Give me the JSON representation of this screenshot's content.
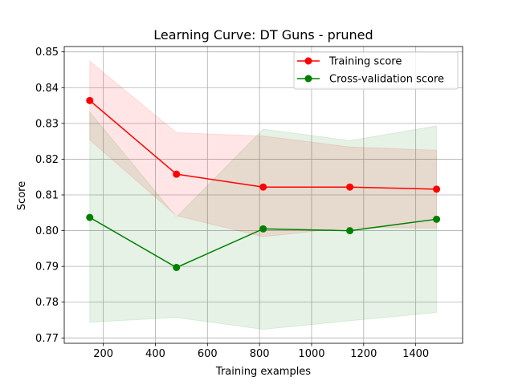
{
  "chart_data": {
    "type": "line",
    "title": "Learning Curve: DT Guns - pruned",
    "xlabel": "Training examples",
    "ylabel": "Score",
    "xlim": [
      50,
      1580
    ],
    "ylim": [
      0.7685,
      0.8515
    ],
    "x_ticks": [
      200,
      400,
      600,
      800,
      1000,
      1200,
      1400
    ],
    "x_tick_labels": [
      "200",
      "400",
      "600",
      "800",
      "1000",
      "1200",
      "1400"
    ],
    "y_ticks": [
      0.77,
      0.78,
      0.79,
      0.8,
      0.81,
      0.82,
      0.83,
      0.84,
      0.85
    ],
    "y_tick_labels": [
      "0.77",
      "0.78",
      "0.79",
      "0.80",
      "0.81",
      "0.82",
      "0.83",
      "0.84",
      "0.85"
    ],
    "grid": true,
    "legend_position": "top-right",
    "x": [
      148,
      481,
      814,
      1147,
      1480
    ],
    "series": [
      {
        "name": "Training score",
        "color": "#ff0000",
        "band_color": "#ff0000",
        "values": [
          0.8364,
          0.8158,
          0.8122,
          0.8122,
          0.8116
        ],
        "upper": [
          0.8474,
          0.8274,
          0.8265,
          0.8234,
          0.8225
        ],
        "lower": [
          0.8254,
          0.8042,
          0.7983,
          0.8009,
          0.8007
        ]
      },
      {
        "name": "Cross-validation score",
        "color": "#008000",
        "band_color": "#008000",
        "values": [
          0.8037,
          0.7897,
          0.8005,
          0.8,
          0.8032
        ],
        "upper": [
          0.8332,
          0.8038,
          0.8284,
          0.8252,
          0.8293
        ],
        "lower": [
          0.7744,
          0.7757,
          0.7724,
          0.7748,
          0.7771
        ]
      }
    ]
  }
}
